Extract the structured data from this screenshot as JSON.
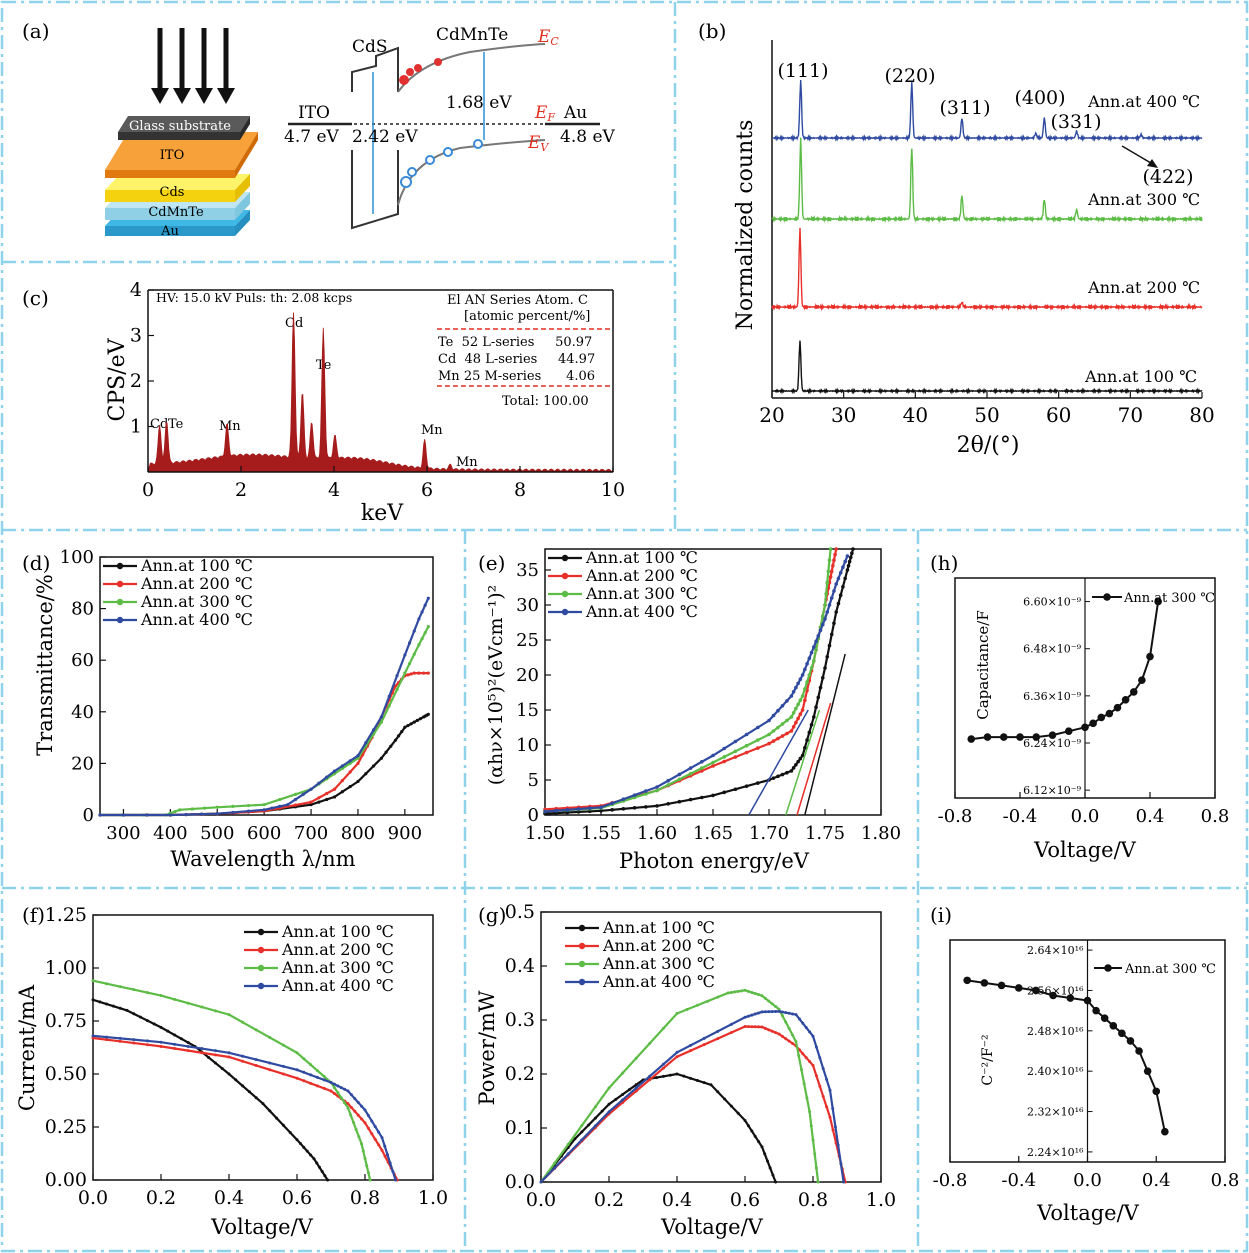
{
  "colors": {
    "divider": "#8fd3ea",
    "black": "#111111",
    "red": "#e8302a",
    "green": "#5cbc46",
    "blue": "#2f4aa0",
    "edx": "#a61c1c",
    "red_text": "#e03020",
    "glass": "#4a4a4a",
    "ito": "#f58d2a",
    "cds": "#f9d81f",
    "cdmnte": "#9ad6ea",
    "au": "#3fb8e6"
  },
  "panels": {
    "a": {
      "label": "(a)",
      "layers": [
        "Glass substrate",
        "ITO",
        "Cds",
        "CdMnTe",
        "Au"
      ],
      "band": {
        "cds": "CdS",
        "cdmnte": "CdMnTe",
        "ec": "E",
        "ec_sub": "C",
        "ef": "E",
        "ef_sub": "F",
        "ev": "E",
        "ev_sub": "V",
        "ito": "ITO",
        "ito_wf": "4.7 eV",
        "cds_gap": "2.42 eV",
        "cdmnte_gap": "1.68 eV",
        "au": "Au",
        "au_wf": "4.8 eV"
      }
    },
    "b": {
      "label": "(b)",
      "ylabel": "Normalized counts",
      "xlabel": "2θ/(°)",
      "peaks": [
        "(111)",
        "(220)",
        "(311)",
        "(400)",
        "(331)",
        "(422)"
      ],
      "legend": [
        "Ann.at 400 ℃",
        "Ann.at 300 ℃",
        "Ann.at 200 ℃",
        "Ann.at 100 ℃"
      ]
    },
    "c": {
      "label": "(c)",
      "ylabel": "CPS/eV",
      "xlabel": "keV",
      "info": "HV: 15.0 kV  Puls: th: 2.08 kcps",
      "table_head1": "El AN Series Atom. C",
      "table_head2": "[atomic percent/%]",
      "rows": [
        "Te  52 L-series     50.97",
        "Cd  48 L-series     44.97",
        "Mn 25 M-series      4.06"
      ],
      "total": "Total: 100.00",
      "peak_labels": [
        "Cd",
        "Te",
        "Cd",
        "Te",
        "Mn",
        "Mn",
        "Mn"
      ]
    },
    "d": {
      "label": "(d)",
      "ylabel": "Transmittance/%",
      "xlabel": "Wavelength λ/nm"
    },
    "e": {
      "label": "(e)",
      "ylabel": "(αhν×10⁵)²(eVcm⁻¹)²",
      "xlabel": "Photon energy/eV"
    },
    "f": {
      "label": "(f)",
      "ylabel": "Current/mA",
      "xlabel": "Voltage/V"
    },
    "g": {
      "label": "(g)",
      "ylabel": "Power/mW",
      "xlabel": "Voltage/V"
    },
    "h": {
      "label": "(h)",
      "ylabel": "Capacitance/F",
      "xlabel": "Voltage/V",
      "legend": "Ann.at 300 ℃"
    },
    "i": {
      "label": "(i)",
      "ylabel": "C⁻²/F⁻²",
      "xlabel": "Voltage/V",
      "legend": "Ann.at 300 ℃"
    }
  },
  "chart_data": [
    {
      "type": "line",
      "panel": "b",
      "xlabel": "2θ/(°)",
      "ylabel": "Normalized counts",
      "xlim": [
        20,
        80
      ],
      "xticks": [
        20,
        30,
        40,
        50,
        60,
        70,
        80
      ],
      "series": [
        {
          "name": "Ann.at 400 ℃",
          "peaks": [
            {
              "x": 24.0,
              "h": 1.0
            },
            {
              "x": 39.5,
              "h": 0.95
            },
            {
              "x": 46.5,
              "h": 0.35
            },
            {
              "x": 56.8,
              "h": 0.08
            },
            {
              "x": 58.0,
              "h": 0.35
            },
            {
              "x": 62.5,
              "h": 0.12
            },
            {
              "x": 71.5,
              "h": 0.06
            }
          ]
        },
        {
          "name": "Ann.at 300 ℃",
          "peaks": [
            {
              "x": 24.0,
              "h": 1.0
            },
            {
              "x": 39.5,
              "h": 0.9
            },
            {
              "x": 46.5,
              "h": 0.3
            },
            {
              "x": 58.0,
              "h": 0.25
            },
            {
              "x": 62.5,
              "h": 0.12
            }
          ]
        },
        {
          "name": "Ann.at 200 ℃",
          "peaks": [
            {
              "x": 23.9,
              "h": 1.0
            },
            {
              "x": 46.5,
              "h": 0.06
            }
          ]
        },
        {
          "name": "Ann.at 100 ℃",
          "peaks": [
            {
              "x": 23.9,
              "h": 1.0
            }
          ]
        }
      ]
    },
    {
      "type": "area",
      "panel": "c",
      "xlabel": "keV",
      "ylabel": "CPS/eV",
      "xlim": [
        0,
        10
      ],
      "ylim": [
        0,
        4
      ],
      "xticks": [
        0,
        2,
        4,
        6,
        8,
        10
      ],
      "yticks": [
        1,
        2,
        3,
        4
      ],
      "peaks": [
        {
          "x": 0.25,
          "h": 0.85
        },
        {
          "x": 0.4,
          "h": 0.95
        },
        {
          "x": 1.7,
          "h": 0.72
        },
        {
          "x": 3.13,
          "h": 3.2
        },
        {
          "x": 3.32,
          "h": 1.45
        },
        {
          "x": 3.52,
          "h": 0.8
        },
        {
          "x": 3.77,
          "h": 2.85
        },
        {
          "x": 4.02,
          "h": 0.5
        },
        {
          "x": 5.95,
          "h": 0.62
        },
        {
          "x": 6.5,
          "h": 0.1
        }
      ]
    },
    {
      "type": "line",
      "panel": "d",
      "xlabel": "Wavelength λ/nm",
      "ylabel": "Transmittance/%",
      "xlim": [
        250,
        960
      ],
      "ylim": [
        0,
        100
      ],
      "xticks": [
        300,
        400,
        500,
        600,
        700,
        800,
        900
      ],
      "yticks": [
        0,
        20,
        40,
        60,
        80,
        100
      ],
      "series": [
        {
          "name": "Ann.at 100 ℃",
          "x": [
            250,
            400,
            500,
            600,
            700,
            750,
            800,
            850,
            880,
            900,
            920,
            940,
            950
          ],
          "y": [
            0,
            0,
            0.5,
            1.5,
            4,
            7,
            13,
            22,
            29,
            34,
            36,
            38,
            39
          ]
        },
        {
          "name": "Ann.at 200 ℃",
          "x": [
            250,
            400,
            500,
            600,
            700,
            750,
            800,
            830,
            860,
            880,
            900,
            920,
            950
          ],
          "y": [
            0,
            0,
            0.5,
            1.5,
            5,
            10,
            20,
            30,
            42,
            50,
            54,
            55,
            55
          ]
        },
        {
          "name": "Ann.at 300 ℃",
          "x": [
            250,
            390,
            420,
            500,
            600,
            700,
            750,
            800,
            850,
            900,
            930,
            950
          ],
          "y": [
            0,
            0,
            2,
            3,
            4,
            10,
            16,
            22,
            36,
            55,
            66,
            73
          ]
        },
        {
          "name": "Ann.at 400 ℃",
          "x": [
            250,
            400,
            500,
            600,
            650,
            700,
            750,
            800,
            850,
            900,
            930,
            950
          ],
          "y": [
            0,
            0,
            0.5,
            2,
            4,
            10,
            17,
            23,
            38,
            62,
            76,
            84
          ]
        }
      ]
    },
    {
      "type": "line",
      "panel": "e",
      "xlabel": "Photon energy/eV",
      "ylabel": "(αhν×10⁵)²(eVcm⁻¹)²",
      "xlim": [
        1.5,
        1.8
      ],
      "ylim": [
        0,
        38
      ],
      "xticks": [
        1.5,
        1.55,
        1.6,
        1.65,
        1.7,
        1.75,
        1.8
      ],
      "yticks": [
        0,
        5,
        10,
        15,
        20,
        25,
        30,
        35
      ],
      "series": [
        {
          "name": "Ann.at 100 ℃",
          "x": [
            1.5,
            1.55,
            1.6,
            1.65,
            1.7,
            1.72,
            1.73,
            1.74,
            1.75,
            1.76,
            1.77,
            1.775
          ],
          "y": [
            0.2,
            0.6,
            1.3,
            2.8,
            5.0,
            6.3,
            8.5,
            14,
            21,
            29,
            35,
            38
          ]
        },
        {
          "name": "Ann.at 200 ℃",
          "x": [
            1.5,
            1.55,
            1.6,
            1.65,
            1.7,
            1.72,
            1.73,
            1.74,
            1.75,
            1.755,
            1.76
          ],
          "y": [
            0.8,
            1.3,
            3.5,
            7.0,
            10.2,
            12,
            15,
            22,
            30,
            34,
            38
          ]
        },
        {
          "name": "Ann.at 300 ℃",
          "x": [
            1.5,
            1.55,
            1.6,
            1.65,
            1.7,
            1.72,
            1.73,
            1.74,
            1.75,
            1.755
          ],
          "y": [
            0.5,
            1.0,
            3.5,
            7.5,
            11.5,
            14,
            17,
            22,
            30,
            38
          ]
        },
        {
          "name": "Ann.at 400 ℃",
          "x": [
            1.5,
            1.55,
            1.6,
            1.65,
            1.7,
            1.72,
            1.73,
            1.74,
            1.75,
            1.76,
            1.77
          ],
          "y": [
            0.5,
            1.1,
            4.0,
            8.5,
            13.5,
            17,
            20,
            24,
            28,
            33,
            37
          ]
        }
      ],
      "fits": [
        [
          1.682,
          0,
          1.735,
          15
        ],
        [
          1.715,
          0,
          1.745,
          15
        ],
        [
          1.725,
          0,
          1.755,
          16
        ],
        [
          1.732,
          0,
          1.768,
          23
        ]
      ]
    },
    {
      "type": "line",
      "panel": "f",
      "xlabel": "Voltage/V",
      "ylabel": "Current/mA",
      "xlim": [
        0,
        1.0
      ],
      "ylim": [
        0,
        1.25
      ],
      "xticks": [
        0,
        0.2,
        0.4,
        0.6,
        0.8,
        1.0
      ],
      "yticks": [
        0,
        0.25,
        0.5,
        0.75,
        1.0,
        1.25
      ],
      "series": [
        {
          "name": "Ann.at 100 ℃",
          "x": [
            0,
            0.1,
            0.2,
            0.3,
            0.4,
            0.5,
            0.6,
            0.65,
            0.69
          ],
          "y": [
            0.85,
            0.8,
            0.72,
            0.63,
            0.5,
            0.36,
            0.19,
            0.1,
            0
          ]
        },
        {
          "name": "Ann.at 200 ℃",
          "x": [
            0,
            0.2,
            0.4,
            0.6,
            0.7,
            0.75,
            0.8,
            0.85,
            0.895
          ],
          "y": [
            0.67,
            0.63,
            0.58,
            0.48,
            0.42,
            0.36,
            0.27,
            0.14,
            0
          ]
        },
        {
          "name": "Ann.at 300 ℃",
          "x": [
            0,
            0.2,
            0.4,
            0.6,
            0.7,
            0.75,
            0.79,
            0.815
          ],
          "y": [
            0.94,
            0.87,
            0.78,
            0.6,
            0.46,
            0.34,
            0.17,
            0
          ]
        },
        {
          "name": "Ann.at 400 ℃",
          "x": [
            0,
            0.2,
            0.4,
            0.6,
            0.7,
            0.75,
            0.8,
            0.85,
            0.89
          ],
          "y": [
            0.68,
            0.65,
            0.6,
            0.52,
            0.46,
            0.42,
            0.33,
            0.2,
            0
          ]
        }
      ]
    },
    {
      "type": "line",
      "panel": "g",
      "xlabel": "Voltage/V",
      "ylabel": "Power/mW",
      "xlim": [
        0,
        1.0
      ],
      "ylim": [
        0,
        0.5
      ],
      "xticks": [
        0,
        0.2,
        0.4,
        0.6,
        0.8,
        1.0
      ],
      "yticks": [
        0,
        0.1,
        0.2,
        0.3,
        0.4,
        0.5
      ],
      "series": [
        {
          "name": "Ann.at 100 ℃",
          "x": [
            0,
            0.1,
            0.2,
            0.3,
            0.4,
            0.5,
            0.6,
            0.65,
            0.69
          ],
          "y": [
            0,
            0.08,
            0.144,
            0.189,
            0.2,
            0.18,
            0.114,
            0.065,
            0
          ]
        },
        {
          "name": "Ann.at 200 ℃",
          "x": [
            0,
            0.2,
            0.4,
            0.6,
            0.65,
            0.7,
            0.75,
            0.8,
            0.85,
            0.895
          ],
          "y": [
            0,
            0.126,
            0.232,
            0.288,
            0.287,
            0.274,
            0.252,
            0.216,
            0.12,
            0
          ]
        },
        {
          "name": "Ann.at 300 ℃",
          "x": [
            0,
            0.2,
            0.4,
            0.55,
            0.6,
            0.65,
            0.7,
            0.75,
            0.79,
            0.815
          ],
          "y": [
            0,
            0.174,
            0.312,
            0.35,
            0.355,
            0.345,
            0.32,
            0.26,
            0.13,
            0
          ]
        },
        {
          "name": "Ann.at 400 ℃",
          "x": [
            0,
            0.2,
            0.4,
            0.6,
            0.65,
            0.7,
            0.75,
            0.8,
            0.85,
            0.89
          ],
          "y": [
            0,
            0.13,
            0.24,
            0.305,
            0.315,
            0.316,
            0.31,
            0.27,
            0.17,
            0
          ]
        }
      ]
    },
    {
      "type": "line",
      "panel": "h",
      "xlabel": "Voltage/V",
      "ylabel": "Capacitance/F",
      "xlim": [
        -0.8,
        0.8
      ],
      "ylim": [
        6.1e-09,
        6.66e-09
      ],
      "xticks": [
        -0.8,
        -0.4,
        0.0,
        0.4,
        0.8
      ],
      "ytick_values": [
        6.12e-09,
        6.24e-09,
        6.36e-09,
        6.48e-09,
        6.6e-09
      ],
      "ytick_labels": [
        "6.12×10⁻⁹",
        "6.24×10⁻⁹",
        "6.36×10⁻⁹",
        "6.48×10⁻⁹",
        "6.60×10⁻⁹"
      ],
      "series": [
        {
          "name": "Ann.at 300 ℃",
          "x": [
            -0.7,
            -0.6,
            -0.5,
            -0.4,
            -0.3,
            -0.2,
            -0.1,
            0.0,
            0.05,
            0.1,
            0.15,
            0.2,
            0.25,
            0.3,
            0.35,
            0.4,
            0.45
          ],
          "y": [
            6.25e-09,
            6.255e-09,
            6.255e-09,
            6.255e-09,
            6.255e-09,
            6.26e-09,
            6.27e-09,
            6.28e-09,
            6.29e-09,
            6.305e-09,
            6.315e-09,
            6.33e-09,
            6.35e-09,
            6.37e-09,
            6.4e-09,
            6.46e-09,
            6.6e-09
          ]
        }
      ]
    },
    {
      "type": "line",
      "panel": "i",
      "xlabel": "Voltage/V",
      "ylabel": "C⁻²/F⁻²",
      "xlim": [
        -0.8,
        0.8
      ],
      "ylim": [
        2.22e+16,
        2.66e+16
      ],
      "xticks": [
        -0.8,
        -0.4,
        0.0,
        0.4,
        0.8
      ],
      "ytick_values": [
        2.24e+16,
        2.32e+16,
        2.4e+16,
        2.48e+16,
        2.56e+16,
        2.64e+16
      ],
      "ytick_labels": [
        "2.24×10¹⁶",
        "2.32×10¹⁶",
        "2.40×10¹⁶",
        "2.48×10¹⁶",
        "2.56×10¹⁶",
        "2.64×10¹⁶"
      ],
      "series": [
        {
          "name": "Ann.at 300 ℃",
          "x": [
            -0.7,
            -0.6,
            -0.5,
            -0.4,
            -0.3,
            -0.2,
            -0.1,
            0.0,
            0.05,
            0.1,
            0.15,
            0.2,
            0.25,
            0.3,
            0.35,
            0.4,
            0.45
          ],
          "y": [
            2.58e+16,
            2.575e+16,
            2.57e+16,
            2.565e+16,
            2.56e+16,
            2.55e+16,
            2.545e+16,
            2.54e+16,
            2.52e+16,
            2.505e+16,
            2.49e+16,
            2.475e+16,
            2.46e+16,
            2.44e+16,
            2.4e+16,
            2.36e+16,
            2.28e+16
          ]
        }
      ]
    }
  ]
}
